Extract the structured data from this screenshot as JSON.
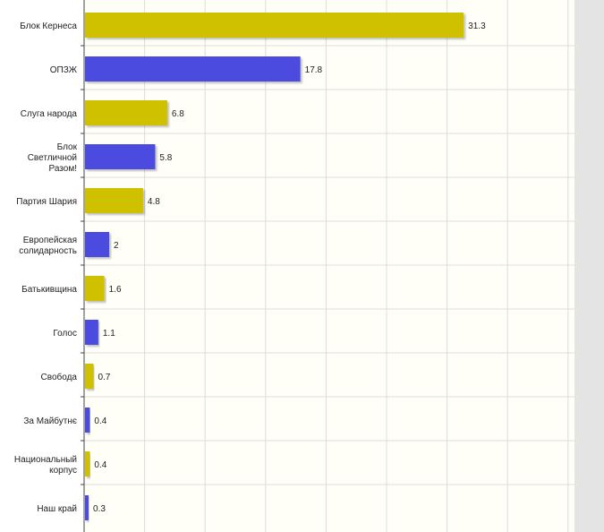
{
  "chart_data": {
    "type": "bar",
    "orientation": "horizontal",
    "categories": [
      "Блок Кернеса",
      "ОПЗЖ",
      "Слуга народа",
      "Блок Светличной Разом!",
      "Партия Шария",
      "Европейская солидарность",
      "Батькивщина",
      "Голос",
      "Свобода",
      "За Майбутнє",
      "Национальный корпус",
      "Наш край"
    ],
    "values": [
      31.3,
      17.8,
      6.8,
      5.8,
      4.8,
      2,
      1.6,
      1.1,
      0.7,
      0.4,
      0.4,
      0.3
    ],
    "value_labels": [
      "31.3",
      "17.8",
      "6.8",
      "5.8",
      "4.8",
      "2",
      "1.6",
      "1.1",
      "0.7",
      "0.4",
      "0.4",
      "0.3"
    ],
    "colors": [
      "#cfc000",
      "#4b4be0",
      "#cfc000",
      "#4b4be0",
      "#cfc000",
      "#4b4be0",
      "#cfc000",
      "#4b4be0",
      "#cfc000",
      "#4b4be0",
      "#cfc000",
      "#4b4be0"
    ],
    "xlim": [
      0,
      40
    ],
    "grid": true,
    "legend": "none",
    "title": "",
    "xlabel": "",
    "ylabel": ""
  },
  "style": {
    "plot_background": "#fffff8",
    "grid_color": "#dcdcdc",
    "axis_color": "#444444",
    "frame_color": "#e4e4e4",
    "text_color": "#222222"
  }
}
